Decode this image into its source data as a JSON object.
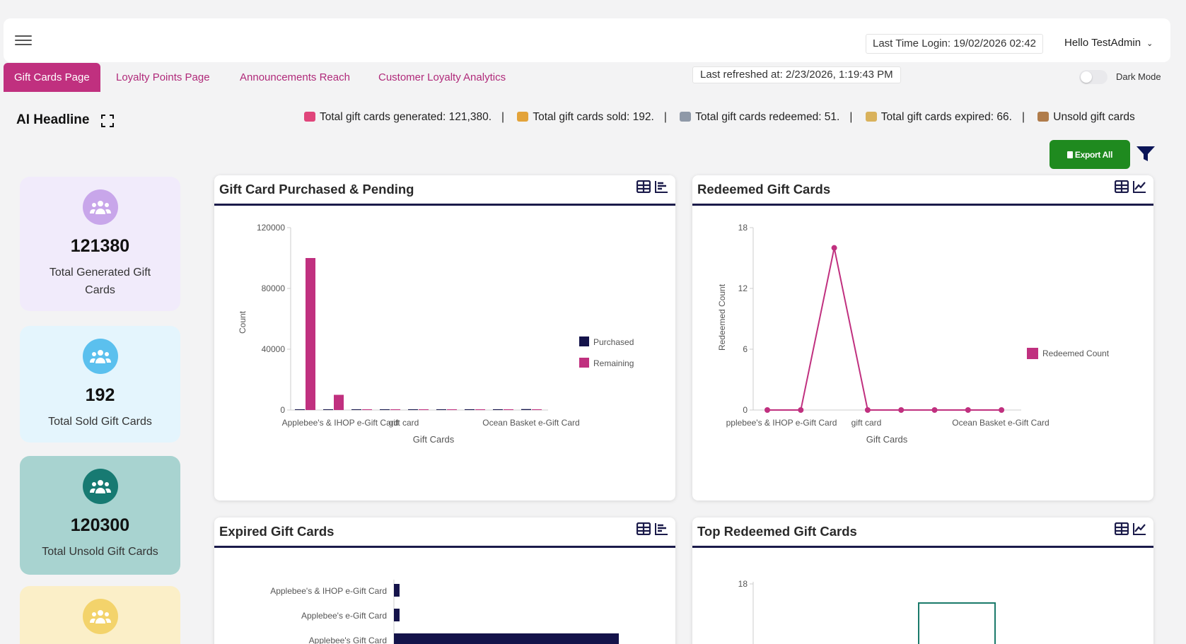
{
  "header": {
    "last_login": "Last Time Login: 19/02/2026 02:42",
    "greeting": "Hello TestAdmin"
  },
  "tabs": [
    {
      "label": "Gift Cards Page",
      "active": true
    },
    {
      "label": "Loyalty Points Page",
      "active": false
    },
    {
      "label": "Announcements Reach",
      "active": false
    },
    {
      "label": "Customer Loyalty Analytics",
      "active": false
    }
  ],
  "last_refreshed": "Last refreshed at: 2/23/2026, 1:19:43 PM",
  "dark_mode": {
    "label": "Dark Mode",
    "enabled": false
  },
  "ai_headline": {
    "title": "AI Headline",
    "ticker": [
      {
        "text": "Total gift cards generated: 121,380.",
        "icon": "gift-card-icon",
        "color": "#e0457b"
      },
      {
        "text": "Total gift cards sold: 192.",
        "icon": "money-bag-icon",
        "color": "#e3a33a"
      },
      {
        "text": "Total gift cards redeemed: 51.",
        "icon": "cart-icon",
        "color": "#8f99a8"
      },
      {
        "text": "Total gift cards expired: 66.",
        "icon": "hourglass-icon",
        "color": "#d9b25c"
      },
      {
        "text": "Unsold gift cards",
        "icon": "box-icon",
        "color": "#b07c4b"
      }
    ]
  },
  "actions": {
    "export_label": "Export All"
  },
  "stat_cards": [
    {
      "value": "121380",
      "label": "Total Generated Gift Cards",
      "bg": "#f1ebfb",
      "icon_bg": "#c8a6ea",
      "icon": "users-icon"
    },
    {
      "value": "192",
      "label": "Total Sold Gift Cards",
      "bg": "#e4f5fd",
      "icon_bg": "#5bc0ee",
      "icon": "users-icon"
    },
    {
      "value": "120300",
      "label": "Total Unsold Gift Cards",
      "bg": "#a8d3d0",
      "icon_bg": "#177a72",
      "icon": "users-icon"
    },
    {
      "value": "",
      "label": "",
      "bg": "#fbefc8",
      "icon_bg": "#f3d36b",
      "icon": "users-icon"
    }
  ],
  "panels": {
    "purchased": {
      "title": "Gift Card Purchased & Pending"
    },
    "redeemed": {
      "title": "Redeemed Gift Cards"
    },
    "expired": {
      "title": "Expired Gift Cards"
    },
    "top_redeemed": {
      "title": "Top Redeemed Gift Cards"
    }
  },
  "chart_data": [
    {
      "id": "purchased",
      "type": "bar",
      "title": "",
      "xlabel": "Gift Cards",
      "ylabel": "Count",
      "ylim": [
        0,
        120000
      ],
      "yticks": [
        0,
        40000,
        80000,
        120000
      ],
      "categories": [
        "Applebee's & IHOP e-Gift Card",
        "",
        "",
        "gift card",
        "",
        "",
        "",
        "Ocean Basket e-Gift Card",
        ""
      ],
      "tick_labels": [
        "Applebee's & IHOP e-Gift Card",
        "gift card",
        "Ocean Basket e-Gift Card"
      ],
      "series": [
        {
          "name": "Purchased",
          "color": "#14134a",
          "values": [
            0,
            0,
            100,
            200,
            300,
            400,
            500,
            500,
            600
          ]
        },
        {
          "name": "Remaining",
          "color": "#c0307f",
          "values": [
            100000,
            10000,
            200,
            100,
            100,
            100,
            100,
            100,
            100
          ]
        }
      ],
      "legend": "right",
      "grid": false
    },
    {
      "id": "redeemed",
      "type": "line",
      "title": "",
      "xlabel": "Gift Cards",
      "ylabel": "Redeemed Count",
      "ylim": [
        0,
        18
      ],
      "yticks": [
        0,
        6,
        12,
        18
      ],
      "categories": [
        "Applebee's & IHOP e-Gift Card",
        "",
        "",
        "gift card",
        "",
        "",
        "",
        "Ocean Basket e-Gift Card"
      ],
      "tick_labels": [
        "pplebee's & IHOP e-Gift Card",
        "gift card",
        "Ocean Basket e-Gift Card"
      ],
      "series": [
        {
          "name": "Redeemed Count",
          "color": "#c0307f",
          "values": [
            0,
            0,
            16,
            0,
            0,
            0,
            0,
            0
          ]
        }
      ],
      "legend": "right",
      "grid": false
    },
    {
      "id": "expired",
      "type": "bar",
      "orientation": "horizontal",
      "title": "",
      "categories": [
        "Applebee's & IHOP e-Gift Card",
        "Applebee's e-Gift Card",
        "Applebee's Gift Card"
      ],
      "series": [
        {
          "name": "Expired",
          "color": "#14134a",
          "values": [
            1,
            1,
            40
          ]
        }
      ],
      "grid": false
    },
    {
      "id": "top_redeemed",
      "type": "bar",
      "title": "",
      "ylim": [
        0,
        18
      ],
      "yticks": [
        18
      ],
      "categories": [
        "",
        "",
        ""
      ],
      "series": [
        {
          "name": "Redeemed",
          "color": "#1a7a6a",
          "values": [
            0,
            16,
            0
          ]
        }
      ],
      "grid": false
    }
  ]
}
